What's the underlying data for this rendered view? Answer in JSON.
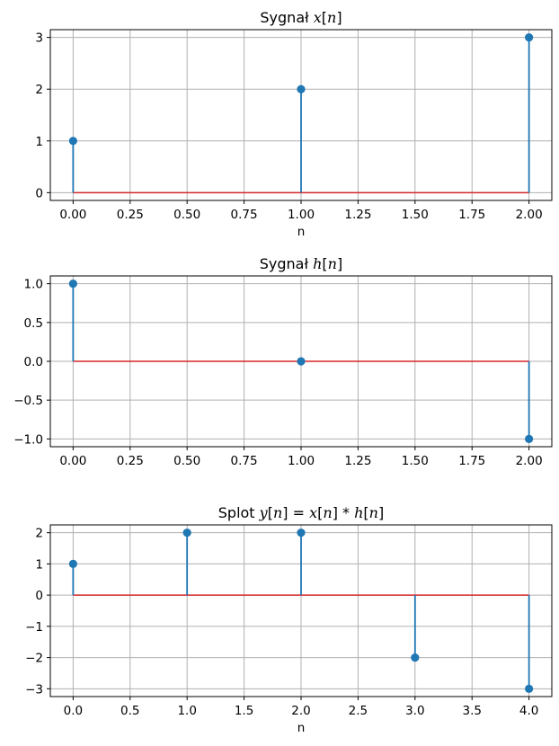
{
  "chart_data": [
    {
      "type": "stem",
      "title_parts": [
        {
          "text": "Sygnał ",
          "italic": false
        },
        {
          "text": "x",
          "italic": true
        },
        {
          "text": "[",
          "italic": false
        },
        {
          "text": "n",
          "italic": true
        },
        {
          "text": "]",
          "italic": false
        }
      ],
      "xlabel": "n",
      "ylabel": "",
      "x": [
        0,
        1,
        2
      ],
      "values": [
        1,
        2,
        3
      ],
      "xlim": [
        -0.1,
        2.1
      ],
      "ylim": [
        -0.15,
        3.15
      ],
      "xticks": [
        0,
        0.25,
        0.5,
        0.75,
        1,
        1.25,
        1.5,
        1.75,
        2
      ],
      "xtick_labels": [
        "0.00",
        "0.25",
        "0.50",
        "0.75",
        "1.00",
        "1.25",
        "1.50",
        "1.75",
        "2.00"
      ],
      "yticks": [
        0,
        1,
        2,
        3
      ],
      "ytick_labels": [
        "0",
        "1",
        "2",
        "3"
      ],
      "grid": true
    },
    {
      "type": "stem",
      "title_parts": [
        {
          "text": "Sygnał ",
          "italic": false
        },
        {
          "text": "h",
          "italic": true
        },
        {
          "text": "[",
          "italic": false
        },
        {
          "text": "n",
          "italic": true
        },
        {
          "text": "]",
          "italic": false
        }
      ],
      "xlabel": "",
      "ylabel": "",
      "x": [
        0,
        1,
        2
      ],
      "values": [
        1,
        0,
        -1
      ],
      "xlim": [
        -0.1,
        2.1
      ],
      "ylim": [
        -1.1,
        1.1
      ],
      "xticks": [
        0,
        0.25,
        0.5,
        0.75,
        1,
        1.25,
        1.5,
        1.75,
        2
      ],
      "xtick_labels": [
        "0.00",
        "0.25",
        "0.50",
        "0.75",
        "1.00",
        "1.25",
        "1.50",
        "1.75",
        "2.00"
      ],
      "yticks": [
        -1,
        -0.5,
        0,
        0.5,
        1
      ],
      "ytick_labels": [
        "−1.0",
        "−0.5",
        "0.0",
        "0.5",
        "1.0"
      ],
      "grid": true
    },
    {
      "type": "stem",
      "title_parts": [
        {
          "text": "Splot ",
          "italic": false
        },
        {
          "text": "y",
          "italic": true
        },
        {
          "text": "[",
          "italic": false
        },
        {
          "text": "n",
          "italic": true
        },
        {
          "text": "] = ",
          "italic": false
        },
        {
          "text": "x",
          "italic": true
        },
        {
          "text": "[",
          "italic": false
        },
        {
          "text": "n",
          "italic": true
        },
        {
          "text": "] * ",
          "italic": false
        },
        {
          "text": "h",
          "italic": true
        },
        {
          "text": "[",
          "italic": false
        },
        {
          "text": "n",
          "italic": true
        },
        {
          "text": "]",
          "italic": false
        }
      ],
      "xlabel": "n",
      "ylabel": "",
      "x": [
        0,
        1,
        2,
        3,
        4
      ],
      "values": [
        1,
        2,
        2,
        -2,
        -3
      ],
      "xlim": [
        -0.2,
        4.2
      ],
      "ylim": [
        -3.25,
        2.25
      ],
      "xticks": [
        0,
        0.5,
        1,
        1.5,
        2,
        2.5,
        3,
        3.5,
        4
      ],
      "xtick_labels": [
        "0.0",
        "0.5",
        "1.0",
        "1.5",
        "2.0",
        "2.5",
        "3.0",
        "3.5",
        "4.0"
      ],
      "yticks": [
        -3,
        -2,
        -1,
        0,
        1,
        2
      ],
      "ytick_labels": [
        "−3",
        "−2",
        "−1",
        "0",
        "1",
        "2"
      ],
      "grid": true
    }
  ],
  "colors": {
    "stem": "#1f77b4",
    "baseline": "#d62728",
    "grid": "#b0b0b0",
    "axes": "#000000"
  }
}
